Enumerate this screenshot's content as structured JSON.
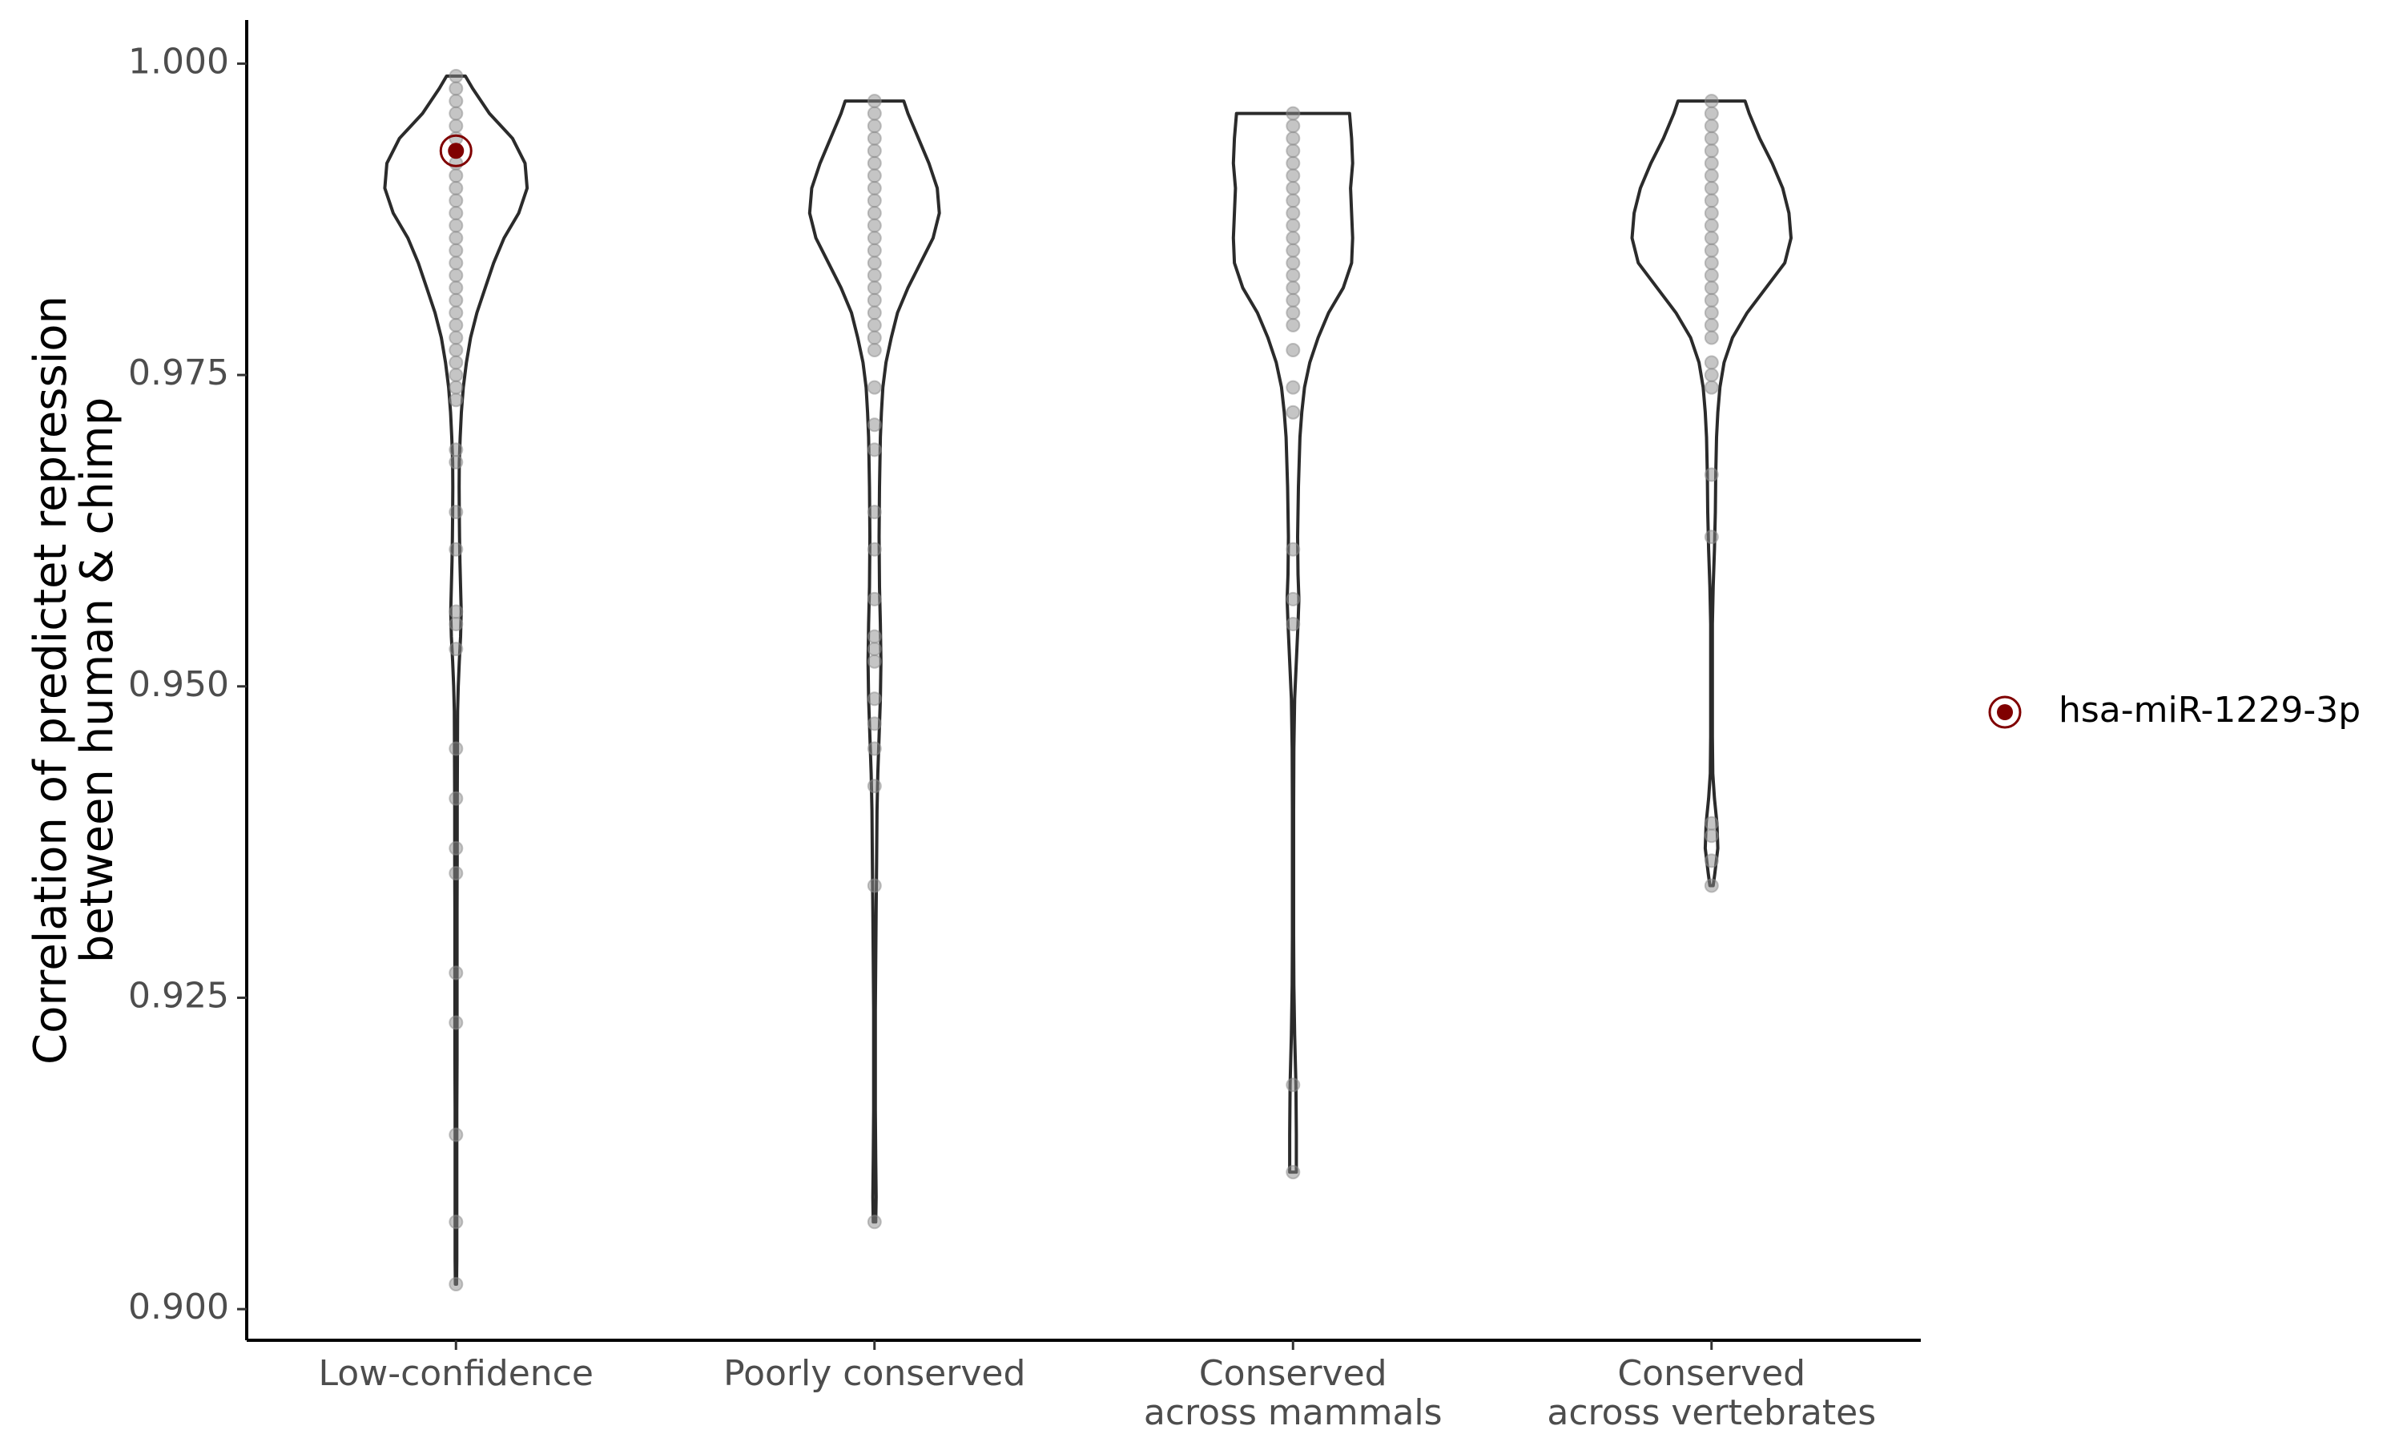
{
  "chart_data": {
    "type": "violin",
    "ylabel_lines": [
      "Correlation of predictet repression",
      "between human & chimp"
    ],
    "xlabel": "",
    "ylim": [
      0.8975,
      1.0035
    ],
    "yticks": [
      {
        "value": 0.9,
        "label": "0.900"
      },
      {
        "value": 0.925,
        "label": "0.925"
      },
      {
        "value": 0.95,
        "label": "0.950"
      },
      {
        "value": 0.975,
        "label": "0.975"
      },
      {
        "value": 1.0,
        "label": "1.000"
      }
    ],
    "grid": false,
    "legend_position": "right",
    "highlight_color": "#800000",
    "point_color": "#8c8c8c",
    "violin_stroke": "#2b2b2b",
    "categories": [
      {
        "name": "Low-confidence",
        "label_lines": [
          "Low-confidence"
        ],
        "violin": [
          [
            0.999,
            0.045
          ],
          [
            0.998,
            0.08
          ],
          [
            0.996,
            0.16
          ],
          [
            0.994,
            0.27
          ],
          [
            0.992,
            0.33
          ],
          [
            0.99,
            0.34
          ],
          [
            0.988,
            0.3
          ],
          [
            0.986,
            0.23
          ],
          [
            0.984,
            0.18
          ],
          [
            0.982,
            0.14
          ],
          [
            0.98,
            0.1
          ],
          [
            0.978,
            0.07
          ],
          [
            0.976,
            0.05
          ],
          [
            0.974,
            0.035
          ],
          [
            0.972,
            0.026
          ],
          [
            0.97,
            0.02
          ],
          [
            0.968,
            0.016
          ],
          [
            0.966,
            0.015
          ],
          [
            0.964,
            0.016
          ],
          [
            0.962,
            0.017
          ],
          [
            0.96,
            0.019
          ],
          [
            0.958,
            0.022
          ],
          [
            0.956,
            0.025
          ],
          [
            0.954,
            0.022
          ],
          [
            0.952,
            0.016
          ],
          [
            0.95,
            0.011
          ],
          [
            0.948,
            0.008
          ],
          [
            0.945,
            0.007
          ],
          [
            0.94,
            0.006
          ],
          [
            0.936,
            0.006
          ],
          [
            0.932,
            0.005
          ],
          [
            0.928,
            0.005
          ],
          [
            0.924,
            0.005
          ],
          [
            0.92,
            0.005
          ],
          [
            0.916,
            0.004
          ],
          [
            0.912,
            0.004
          ],
          [
            0.908,
            0.004
          ],
          [
            0.904,
            0.004
          ],
          [
            0.902,
            0.003
          ]
        ],
        "points": [
          0.999,
          0.998,
          0.997,
          0.996,
          0.995,
          0.994,
          0.993,
          0.992,
          0.991,
          0.99,
          0.989,
          0.988,
          0.987,
          0.986,
          0.985,
          0.984,
          0.983,
          0.982,
          0.981,
          0.98,
          0.979,
          0.978,
          0.977,
          0.976,
          0.975,
          0.974,
          0.973,
          0.969,
          0.968,
          0.964,
          0.961,
          0.956,
          0.955,
          0.953,
          0.945,
          0.941,
          0.937,
          0.935,
          0.927,
          0.923,
          0.914,
          0.907,
          0.902
        ]
      },
      {
        "name": "Poorly conserved",
        "label_lines": [
          "Poorly conserved"
        ],
        "violin": [
          [
            0.997,
            0.14
          ],
          [
            0.996,
            0.16
          ],
          [
            0.994,
            0.21
          ],
          [
            0.992,
            0.26
          ],
          [
            0.99,
            0.3
          ],
          [
            0.988,
            0.31
          ],
          [
            0.986,
            0.28
          ],
          [
            0.984,
            0.22
          ],
          [
            0.982,
            0.16
          ],
          [
            0.98,
            0.11
          ],
          [
            0.978,
            0.08
          ],
          [
            0.976,
            0.055
          ],
          [
            0.974,
            0.04
          ],
          [
            0.972,
            0.033
          ],
          [
            0.97,
            0.028
          ],
          [
            0.966,
            0.024
          ],
          [
            0.962,
            0.022
          ],
          [
            0.958,
            0.024
          ],
          [
            0.955,
            0.028
          ],
          [
            0.952,
            0.031
          ],
          [
            0.949,
            0.028
          ],
          [
            0.946,
            0.022
          ],
          [
            0.943,
            0.016
          ],
          [
            0.94,
            0.012
          ],
          [
            0.936,
            0.01
          ],
          [
            0.932,
            0.008
          ],
          [
            0.928,
            0.006
          ],
          [
            0.924,
            0.004
          ],
          [
            0.92,
            0.004
          ],
          [
            0.916,
            0.004
          ],
          [
            0.912,
            0.006
          ],
          [
            0.909,
            0.008
          ],
          [
            0.907,
            0.006
          ]
        ],
        "points": [
          0.997,
          0.996,
          0.995,
          0.994,
          0.993,
          0.992,
          0.991,
          0.99,
          0.989,
          0.988,
          0.987,
          0.986,
          0.985,
          0.984,
          0.983,
          0.982,
          0.981,
          0.98,
          0.979,
          0.978,
          0.977,
          0.974,
          0.971,
          0.969,
          0.964,
          0.961,
          0.957,
          0.954,
          0.953,
          0.952,
          0.949,
          0.947,
          0.945,
          0.942,
          0.934,
          0.907
        ]
      },
      {
        "name": "Conserved across mammals",
        "label_lines": [
          "Conserved",
          "across mammals"
        ],
        "violin": [
          [
            0.996,
            0.27
          ],
          [
            0.994,
            0.28
          ],
          [
            0.992,
            0.285
          ],
          [
            0.99,
            0.275
          ],
          [
            0.988,
            0.28
          ],
          [
            0.986,
            0.285
          ],
          [
            0.984,
            0.28
          ],
          [
            0.982,
            0.24
          ],
          [
            0.98,
            0.17
          ],
          [
            0.978,
            0.12
          ],
          [
            0.976,
            0.08
          ],
          [
            0.974,
            0.055
          ],
          [
            0.972,
            0.042
          ],
          [
            0.97,
            0.033
          ],
          [
            0.966,
            0.026
          ],
          [
            0.962,
            0.022
          ],
          [
            0.959,
            0.024
          ],
          [
            0.957,
            0.028
          ],
          [
            0.955,
            0.024
          ],
          [
            0.952,
            0.016
          ],
          [
            0.949,
            0.008
          ],
          [
            0.945,
            0.004
          ],
          [
            0.94,
            0.003
          ],
          [
            0.935,
            0.003
          ],
          [
            0.93,
            0.003
          ],
          [
            0.926,
            0.004
          ],
          [
            0.922,
            0.008
          ],
          [
            0.918,
            0.014
          ],
          [
            0.914,
            0.016
          ],
          [
            0.911,
            0.016
          ]
        ],
        "points": [
          0.996,
          0.995,
          0.994,
          0.993,
          0.992,
          0.991,
          0.99,
          0.989,
          0.988,
          0.987,
          0.986,
          0.985,
          0.984,
          0.983,
          0.982,
          0.981,
          0.98,
          0.979,
          0.977,
          0.974,
          0.972,
          0.961,
          0.957,
          0.955,
          0.918,
          0.911
        ]
      },
      {
        "name": "Conserved across vertebrates",
        "label_lines": [
          "Conserved",
          "across vertebrates"
        ],
        "violin": [
          [
            0.997,
            0.16
          ],
          [
            0.996,
            0.18
          ],
          [
            0.994,
            0.23
          ],
          [
            0.992,
            0.29
          ],
          [
            0.99,
            0.34
          ],
          [
            0.988,
            0.37
          ],
          [
            0.986,
            0.38
          ],
          [
            0.984,
            0.35
          ],
          [
            0.982,
            0.26
          ],
          [
            0.98,
            0.17
          ],
          [
            0.978,
            0.1
          ],
          [
            0.976,
            0.06
          ],
          [
            0.974,
            0.04
          ],
          [
            0.972,
            0.03
          ],
          [
            0.97,
            0.024
          ],
          [
            0.967,
            0.02
          ],
          [
            0.964,
            0.018
          ],
          [
            0.961,
            0.014
          ],
          [
            0.958,
            0.008
          ],
          [
            0.955,
            0.004
          ],
          [
            0.95,
            0.004
          ],
          [
            0.946,
            0.004
          ],
          [
            0.943,
            0.006
          ],
          [
            0.941,
            0.014
          ],
          [
            0.939,
            0.026
          ],
          [
            0.937,
            0.03
          ],
          [
            0.935,
            0.016
          ],
          [
            0.934,
            0.008
          ]
        ],
        "points": [
          0.997,
          0.996,
          0.995,
          0.994,
          0.993,
          0.992,
          0.991,
          0.99,
          0.989,
          0.988,
          0.987,
          0.986,
          0.985,
          0.984,
          0.983,
          0.982,
          0.981,
          0.98,
          0.979,
          0.978,
          0.976,
          0.975,
          0.974,
          0.967,
          0.962,
          0.939,
          0.938,
          0.936,
          0.934
        ]
      }
    ],
    "highlight": {
      "label": "hsa-miR-1229-3p",
      "category": "Low-confidence",
      "value": 0.993
    }
  }
}
